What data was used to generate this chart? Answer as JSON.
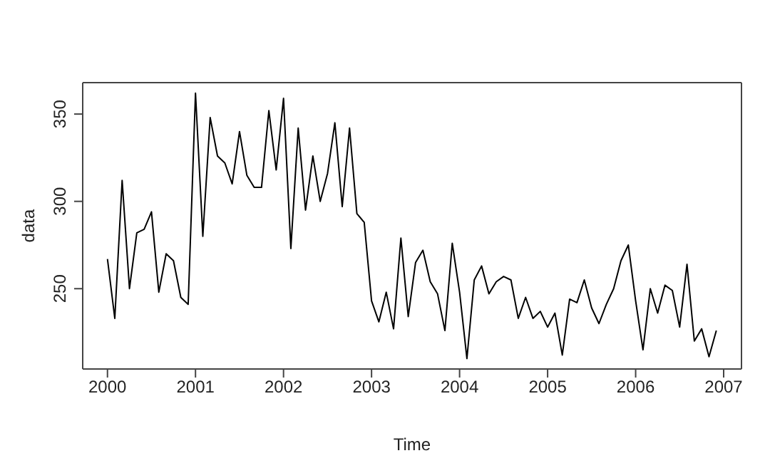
{
  "chart_data": {
    "type": "line",
    "xlabel": "Time",
    "ylabel": "data",
    "x": [
      "2000-01",
      "2000-02",
      "2000-03",
      "2000-04",
      "2000-05",
      "2000-06",
      "2000-07",
      "2000-08",
      "2000-09",
      "2000-10",
      "2000-11",
      "2000-12",
      "2001-01",
      "2001-02",
      "2001-03",
      "2001-04",
      "2001-05",
      "2001-06",
      "2001-07",
      "2001-08",
      "2001-09",
      "2001-10",
      "2001-11",
      "2001-12",
      "2002-01",
      "2002-02",
      "2002-03",
      "2002-04",
      "2002-05",
      "2002-06",
      "2002-07",
      "2002-08",
      "2002-09",
      "2002-10",
      "2002-11",
      "2002-12",
      "2003-01",
      "2003-02",
      "2003-03",
      "2003-04",
      "2003-05",
      "2003-06",
      "2003-07",
      "2003-08",
      "2003-09",
      "2003-10",
      "2003-11",
      "2003-12",
      "2004-01",
      "2004-02",
      "2004-03",
      "2004-04",
      "2004-05",
      "2004-06",
      "2004-07",
      "2004-08",
      "2004-09",
      "2004-10",
      "2004-11",
      "2004-12",
      "2005-01",
      "2005-02",
      "2005-03",
      "2005-04",
      "2005-05",
      "2005-06",
      "2005-07",
      "2005-08",
      "2005-09",
      "2005-10",
      "2005-11",
      "2005-12",
      "2006-01",
      "2006-02",
      "2006-03",
      "2006-04",
      "2006-05",
      "2006-06",
      "2006-07",
      "2006-08",
      "2006-09",
      "2006-10",
      "2006-11",
      "2006-12"
    ],
    "series": [
      {
        "color": "#000000",
        "values": [
          267,
          233,
          312,
          250,
          282,
          284,
          294,
          248,
          270,
          266,
          245,
          241,
          362,
          280,
          348,
          326,
          322,
          310,
          340,
          315,
          308,
          308,
          352,
          318,
          359,
          273,
          342,
          295,
          326,
          300,
          316,
          345,
          297,
          342,
          293,
          288,
          243,
          231,
          248,
          227,
          279,
          234,
          265,
          272,
          254,
          247,
          226,
          276,
          248,
          210,
          255,
          263,
          247,
          254,
          257,
          255,
          233,
          245,
          233,
          237,
          228,
          236,
          212,
          244,
          242,
          255,
          239,
          230,
          241,
          250,
          266,
          275,
          243,
          215,
          250,
          236,
          252,
          249,
          228,
          264,
          220,
          227,
          211,
          226
        ]
      }
    ],
    "xlim": [
      "1999-09-20",
      "2007-03-14"
    ],
    "xticks": [
      {
        "value": "2000-01",
        "label": "2000"
      },
      {
        "value": "2001-01",
        "label": "2001"
      },
      {
        "value": "2002-01",
        "label": "2002"
      },
      {
        "value": "2003-01",
        "label": "2003"
      },
      {
        "value": "2004-01",
        "label": "2004"
      },
      {
        "value": "2005-01",
        "label": "2005"
      },
      {
        "value": "2006-01",
        "label": "2006"
      },
      {
        "value": "2007-01",
        "label": "2007"
      }
    ],
    "ylim": [
      204,
      368
    ],
    "yticks": [
      250,
      300,
      350
    ],
    "grid": false,
    "legend": false,
    "marker": "none",
    "line_style": "solid"
  }
}
